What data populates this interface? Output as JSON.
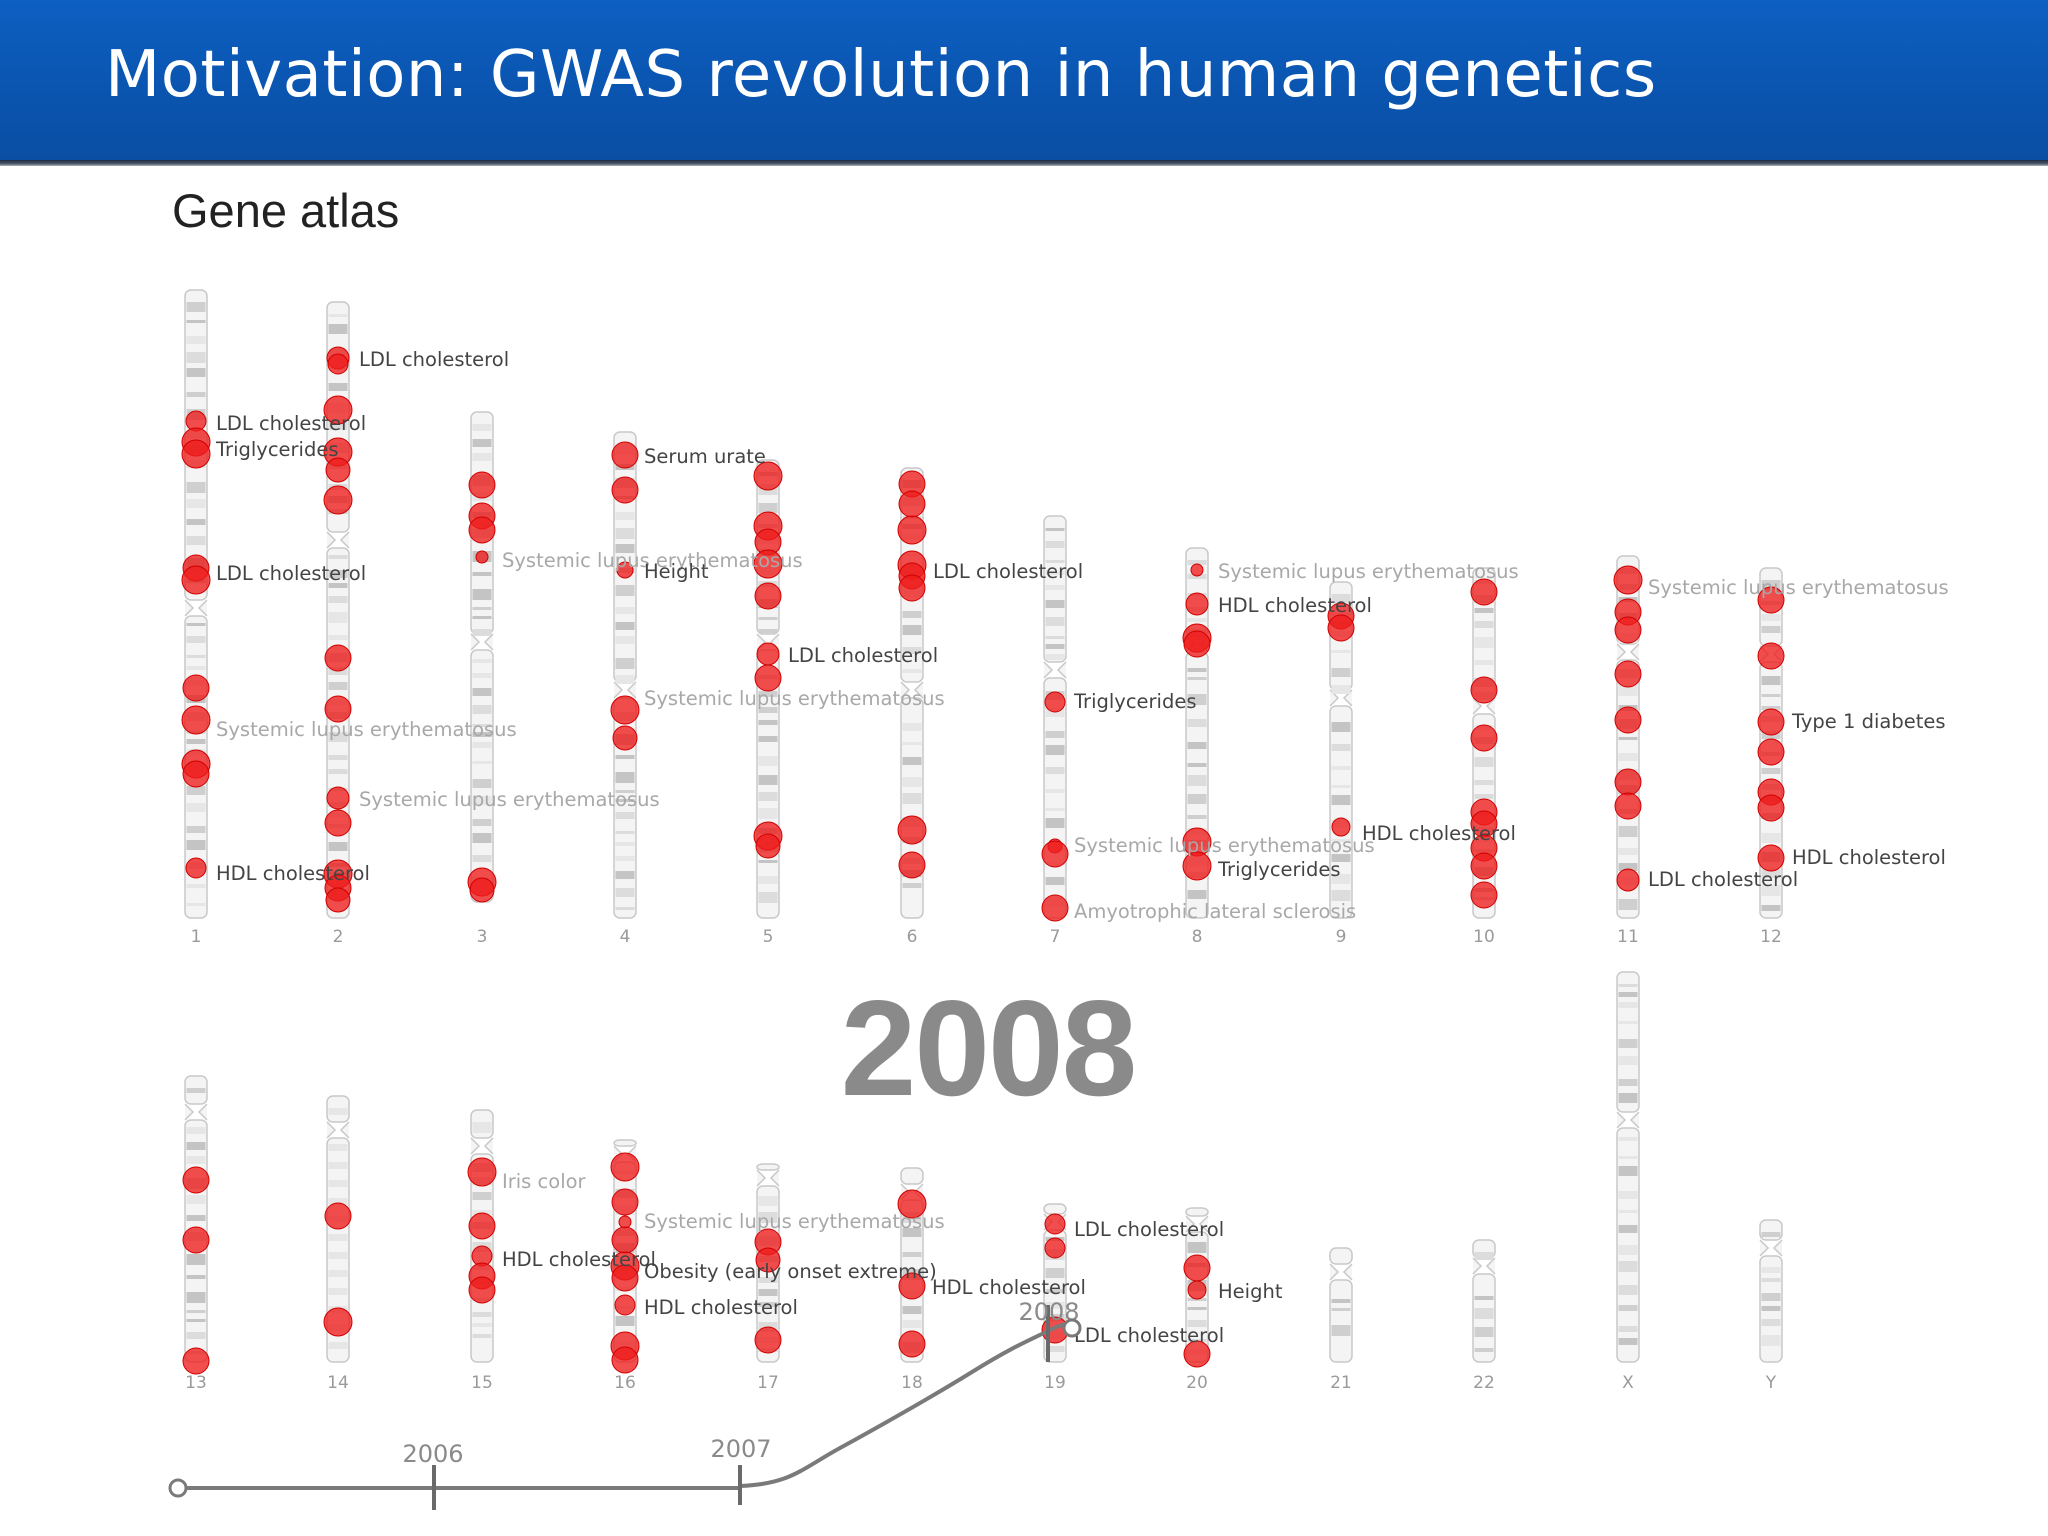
{
  "slide": {
    "title": "Motivation: GWAS revolution in human genetics",
    "heading": "Gene atlas",
    "year": "2008",
    "colors": {
      "header": "#0a55b0",
      "association": "#ee1c1c",
      "chromosome": "#dcdcdc"
    }
  },
  "chromosomes": [
    "1",
    "2",
    "3",
    "4",
    "5",
    "6",
    "7",
    "8",
    "9",
    "10",
    "11",
    "12",
    "13",
    "14",
    "15",
    "16",
    "17",
    "18",
    "19",
    "20",
    "21",
    "22",
    "X",
    "Y"
  ],
  "chart_data": {
    "type": "scatter",
    "labels": [
      {
        "chromosome": "2",
        "text": "LDL cholesterol",
        "faded": false
      },
      {
        "chromosome": "1",
        "text": "LDL cholesterol",
        "faded": false
      },
      {
        "chromosome": "1",
        "text": "Triglycerides",
        "faded": false
      },
      {
        "chromosome": "4",
        "text": "Serum urate",
        "faded": false
      },
      {
        "chromosome": "3",
        "text": "Systemic lupus erythematosus",
        "faded": true
      },
      {
        "chromosome": "4",
        "text": "Height",
        "faded": false
      },
      {
        "chromosome": "1",
        "text": "LDL cholesterol",
        "faded": false
      },
      {
        "chromosome": "6",
        "text": "LDL cholesterol",
        "faded": false
      },
      {
        "chromosome": "8",
        "text": "Systemic lupus erythematosus",
        "faded": true
      },
      {
        "chromosome": "8",
        "text": "HDL cholesterol",
        "faded": false
      },
      {
        "chromosome": "11",
        "text": "Systemic lupus erythematosus",
        "faded": true
      },
      {
        "chromosome": "5",
        "text": "LDL cholesterol",
        "faded": false
      },
      {
        "chromosome": "4",
        "text": "Systemic lupus erythematosus",
        "faded": true
      },
      {
        "chromosome": "7",
        "text": "Triglycerides",
        "faded": false
      },
      {
        "chromosome": "12",
        "text": "Type 1 diabetes",
        "faded": false
      },
      {
        "chromosome": "1",
        "text": "Systemic lupus erythematosus",
        "faded": true
      },
      {
        "chromosome": "2",
        "text": "Systemic lupus erythematosus",
        "faded": true
      },
      {
        "chromosome": "9",
        "text": "HDL cholesterol",
        "faded": false
      },
      {
        "chromosome": "7",
        "text": "Systemic lupus erythematosus",
        "faded": true
      },
      {
        "chromosome": "12",
        "text": "HDL cholesterol",
        "faded": false
      },
      {
        "chromosome": "8",
        "text": "Triglycerides",
        "faded": false
      },
      {
        "chromosome": "1",
        "text": "HDL cholesterol",
        "faded": false
      },
      {
        "chromosome": "11",
        "text": "LDL cholesterol",
        "faded": false
      },
      {
        "chromosome": "7",
        "text": "Amyotrophic lateral sclerosis",
        "faded": true
      },
      {
        "chromosome": "15",
        "text": "Iris color",
        "faded": true
      },
      {
        "chromosome": "16",
        "text": "Systemic lupus erythematosus",
        "faded": true
      },
      {
        "chromosome": "19",
        "text": "LDL cholesterol",
        "faded": false
      },
      {
        "chromosome": "15",
        "text": "HDL cholesterol",
        "faded": false
      },
      {
        "chromosome": "16",
        "text": "Obesity (early onset extreme)",
        "faded": false
      },
      {
        "chromosome": "18",
        "text": "HDL cholesterol",
        "faded": false
      },
      {
        "chromosome": "20",
        "text": "Height",
        "faded": false
      },
      {
        "chromosome": "16",
        "text": "HDL cholesterol",
        "faded": false
      },
      {
        "chromosome": "19",
        "text": "LDL cholesterol",
        "faded": false
      }
    ]
  },
  "timeline": {
    "labels": [
      "2006",
      "2007",
      "2008"
    ]
  }
}
